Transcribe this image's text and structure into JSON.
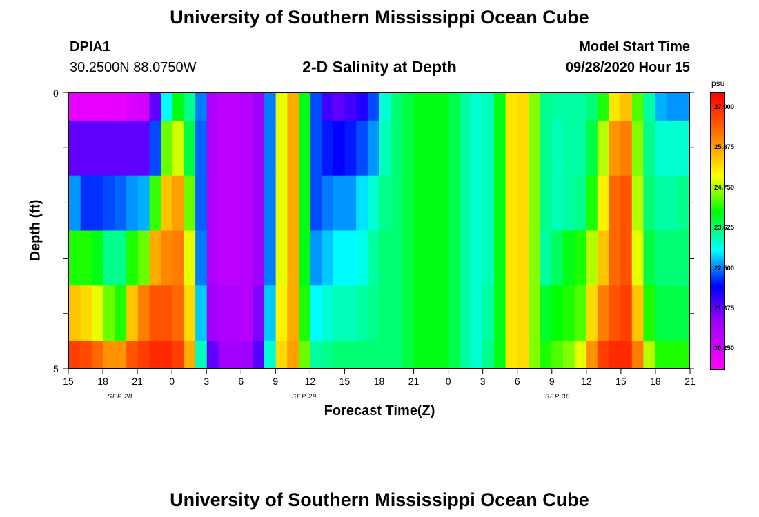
{
  "header": {
    "title": "University of Southern Mississippi Ocean Cube",
    "station_id": "DPIA1",
    "coordinates": "30.2500N 88.0750W",
    "subtitle": "2-D Salinity at Depth",
    "model_start_label": "Model Start Time",
    "model_start_value": "09/28/2020 Hour 15"
  },
  "footer": {
    "title": "University of Southern Mississippi Ocean Cube"
  },
  "chart_data": {
    "type": "heatmap",
    "title": "2-D Salinity at Depth",
    "xlabel": "Forecast Time(Z)",
    "ylabel": "Depth (ft)",
    "x_tick_labels": [
      "15",
      "18",
      "21",
      "0",
      "3",
      "6",
      "9",
      "12",
      "15",
      "18",
      "21",
      "0",
      "3",
      "6",
      "9",
      "12",
      "15",
      "18",
      "21"
    ],
    "date_labels": [
      {
        "text": "SEP 28",
        "hour_index": 4.5
      },
      {
        "text": "SEP 29",
        "hour_index": 20.5
      },
      {
        "text": "SEP 30",
        "hour_index": 42.5
      }
    ],
    "y_tick_labels": [
      "0",
      "5"
    ],
    "ylim": [
      0,
      5
    ],
    "xlim_hours": [
      0,
      54
    ],
    "colorbar": {
      "unit": "psu",
      "range": [
        19.7,
        27.4
      ],
      "tick_values": [
        27.0,
        25.875,
        24.75,
        23.625,
        22.5,
        21.375,
        20.25
      ],
      "tick_labels": [
        "27.000",
        "25.875",
        "24.750",
        "23.625",
        "22.500",
        "21.375",
        "20.250"
      ],
      "stops": [
        {
          "t": 0.0,
          "color": "#ff00ff"
        },
        {
          "t": 0.17,
          "color": "#a000ff"
        },
        {
          "t": 0.3,
          "color": "#0000ff"
        },
        {
          "t": 0.43,
          "color": "#00ffff"
        },
        {
          "t": 0.57,
          "color": "#00ff00"
        },
        {
          "t": 0.7,
          "color": "#ffff00"
        },
        {
          "t": 0.84,
          "color": "#ff8000"
        },
        {
          "t": 1.0,
          "color": "#ff0000"
        }
      ]
    },
    "depth_layers": [
      "0.0-0.5",
      "0.5-1.5",
      "1.5-2.5",
      "2.5-3.5",
      "3.5-4.5",
      "4.5-5.0"
    ],
    "layer_salinity_by_hour": [
      [
        20.0,
        20.0,
        20.0,
        20.0,
        20.0,
        20.2,
        20.3,
        21.4,
        23.0,
        24.0,
        23.5,
        22.5,
        20.8,
        20.6,
        20.6,
        20.7,
        21.0,
        22.5,
        25.0,
        25.8,
        24.0,
        22.3,
        21.6,
        21.4,
        21.6,
        21.8,
        22.3,
        23.2,
        23.6,
        23.8,
        24.0,
        24.0,
        24.0,
        23.8,
        23.4,
        23.2,
        23.3,
        24.0,
        25.3,
        25.4,
        24.6,
        23.5,
        23.4,
        23.4,
        23.4,
        23.6,
        24.2,
        25.3,
        25.6,
        24.4,
        23.4,
        22.7,
        22.6,
        22.6
      ],
      [
        21.4,
        21.4,
        21.4,
        21.4,
        21.4,
        21.4,
        21.4,
        22.3,
        24.5,
        24.9,
        23.8,
        22.4,
        20.8,
        20.6,
        20.6,
        20.7,
        21.0,
        22.5,
        25.0,
        25.8,
        24.0,
        22.3,
        22.1,
        22.0,
        22.1,
        22.3,
        22.6,
        23.3,
        23.6,
        23.8,
        24.0,
        24.0,
        24.0,
        23.8,
        23.4,
        23.2,
        23.3,
        24.0,
        25.3,
        25.4,
        24.6,
        23.5,
        23.3,
        23.4,
        23.4,
        23.8,
        24.8,
        26.0,
        26.2,
        24.6,
        23.5,
        23.2,
        23.2,
        23.2
      ],
      [
        22.6,
        22.2,
        22.2,
        22.3,
        22.4,
        22.6,
        22.7,
        24.3,
        25.6,
        25.9,
        24.5,
        22.4,
        20.8,
        20.6,
        20.6,
        20.7,
        21.0,
        22.5,
        25.0,
        25.8,
        24.0,
        22.3,
        22.5,
        22.6,
        22.6,
        22.9,
        23.2,
        23.5,
        23.6,
        23.8,
        24.0,
        24.0,
        24.0,
        23.8,
        23.4,
        23.2,
        23.3,
        24.0,
        25.3,
        25.4,
        24.6,
        23.5,
        23.3,
        23.4,
        23.5,
        24.2,
        25.2,
        26.4,
        26.6,
        24.8,
        23.6,
        23.4,
        23.4,
        23.5
      ],
      [
        24.2,
        24.2,
        24.0,
        23.5,
        23.5,
        24.2,
        24.5,
        25.8,
        26.1,
        26.2,
        25.0,
        22.5,
        20.8,
        20.6,
        20.6,
        20.7,
        21.0,
        22.5,
        25.0,
        25.8,
        24.0,
        22.6,
        22.8,
        23.0,
        23.0,
        23.1,
        23.4,
        23.6,
        23.6,
        23.8,
        24.0,
        24.0,
        24.0,
        23.8,
        23.4,
        23.2,
        23.3,
        24.0,
        25.3,
        25.4,
        24.6,
        23.4,
        23.7,
        24.0,
        24.2,
        24.8,
        25.6,
        26.4,
        26.6,
        25.0,
        23.8,
        23.6,
        23.6,
        23.6
      ],
      [
        25.6,
        25.4,
        25.0,
        24.5,
        24.2,
        25.6,
        26.2,
        26.6,
        26.6,
        26.4,
        25.4,
        22.8,
        21.0,
        20.8,
        20.8,
        20.7,
        21.2,
        22.8,
        25.2,
        25.8,
        24.2,
        23.0,
        23.2,
        23.3,
        23.3,
        23.4,
        23.5,
        23.6,
        23.6,
        23.8,
        24.0,
        24.0,
        24.0,
        23.8,
        23.4,
        23.2,
        23.4,
        24.0,
        25.3,
        25.4,
        24.6,
        23.9,
        24.1,
        24.2,
        24.4,
        25.4,
        26.2,
        26.6,
        26.8,
        25.6,
        24.2,
        23.8,
        23.8,
        23.8
      ],
      [
        26.8,
        26.7,
        26.4,
        26.0,
        26.0,
        26.6,
        26.8,
        27.0,
        27.0,
        26.8,
        25.8,
        23.3,
        21.4,
        21.0,
        21.0,
        21.0,
        21.5,
        23.2,
        25.4,
        25.9,
        24.5,
        23.4,
        23.5,
        23.6,
        23.6,
        23.6,
        23.6,
        23.6,
        23.6,
        23.8,
        24.0,
        24.0,
        24.0,
        23.8,
        23.4,
        23.2,
        23.5,
        24.0,
        25.3,
        25.4,
        24.6,
        24.2,
        24.4,
        24.6,
        25.0,
        26.0,
        26.8,
        27.0,
        27.0,
        26.2,
        24.8,
        24.2,
        24.2,
        24.2
      ]
    ]
  }
}
